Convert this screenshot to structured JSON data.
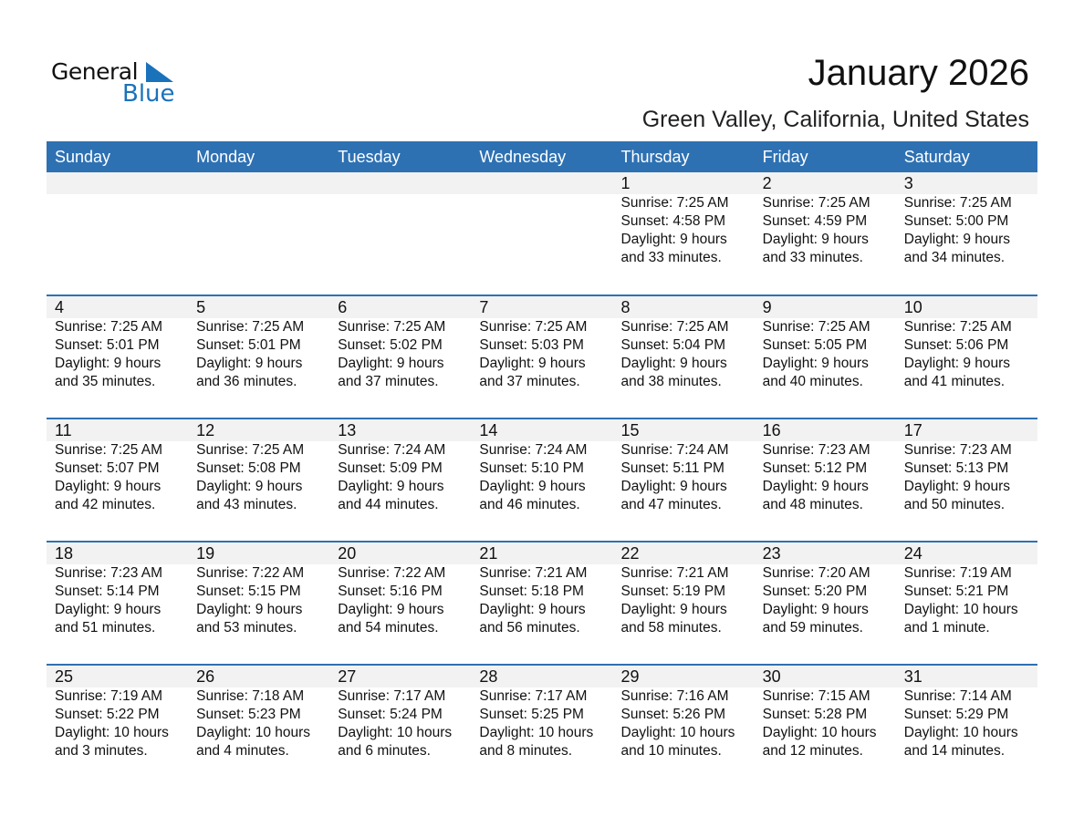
{
  "logo": {
    "text1": "General",
    "text2": "Blue",
    "color": "#1a72bb"
  },
  "title": "January 2026",
  "subtitle": "Green Valley, California, United States",
  "colors": {
    "header": "#2e71b3",
    "band": "#f2f2f2"
  },
  "days": [
    "Sunday",
    "Monday",
    "Tuesday",
    "Wednesday",
    "Thursday",
    "Friday",
    "Saturday"
  ],
  "weeks": [
    [
      null,
      null,
      null,
      null,
      {
        "day": "1",
        "sunrise": "Sunrise: 7:25 AM",
        "sunset": "Sunset: 4:58 PM",
        "daylight1": "Daylight: 9 hours",
        "daylight2": "and 33 minutes."
      },
      {
        "day": "2",
        "sunrise": "Sunrise: 7:25 AM",
        "sunset": "Sunset: 4:59 PM",
        "daylight1": "Daylight: 9 hours",
        "daylight2": "and 33 minutes."
      },
      {
        "day": "3",
        "sunrise": "Sunrise: 7:25 AM",
        "sunset": "Sunset: 5:00 PM",
        "daylight1": "Daylight: 9 hours",
        "daylight2": "and 34 minutes."
      }
    ],
    [
      {
        "day": "4",
        "sunrise": "Sunrise: 7:25 AM",
        "sunset": "Sunset: 5:01 PM",
        "daylight1": "Daylight: 9 hours",
        "daylight2": "and 35 minutes."
      },
      {
        "day": "5",
        "sunrise": "Sunrise: 7:25 AM",
        "sunset": "Sunset: 5:01 PM",
        "daylight1": "Daylight: 9 hours",
        "daylight2": "and 36 minutes."
      },
      {
        "day": "6",
        "sunrise": "Sunrise: 7:25 AM",
        "sunset": "Sunset: 5:02 PM",
        "daylight1": "Daylight: 9 hours",
        "daylight2": "and 37 minutes."
      },
      {
        "day": "7",
        "sunrise": "Sunrise: 7:25 AM",
        "sunset": "Sunset: 5:03 PM",
        "daylight1": "Daylight: 9 hours",
        "daylight2": "and 37 minutes."
      },
      {
        "day": "8",
        "sunrise": "Sunrise: 7:25 AM",
        "sunset": "Sunset: 5:04 PM",
        "daylight1": "Daylight: 9 hours",
        "daylight2": "and 38 minutes."
      },
      {
        "day": "9",
        "sunrise": "Sunrise: 7:25 AM",
        "sunset": "Sunset: 5:05 PM",
        "daylight1": "Daylight: 9 hours",
        "daylight2": "and 40 minutes."
      },
      {
        "day": "10",
        "sunrise": "Sunrise: 7:25 AM",
        "sunset": "Sunset: 5:06 PM",
        "daylight1": "Daylight: 9 hours",
        "daylight2": "and 41 minutes."
      }
    ],
    [
      {
        "day": "11",
        "sunrise": "Sunrise: 7:25 AM",
        "sunset": "Sunset: 5:07 PM",
        "daylight1": "Daylight: 9 hours",
        "daylight2": "and 42 minutes."
      },
      {
        "day": "12",
        "sunrise": "Sunrise: 7:25 AM",
        "sunset": "Sunset: 5:08 PM",
        "daylight1": "Daylight: 9 hours",
        "daylight2": "and 43 minutes."
      },
      {
        "day": "13",
        "sunrise": "Sunrise: 7:24 AM",
        "sunset": "Sunset: 5:09 PM",
        "daylight1": "Daylight: 9 hours",
        "daylight2": "and 44 minutes."
      },
      {
        "day": "14",
        "sunrise": "Sunrise: 7:24 AM",
        "sunset": "Sunset: 5:10 PM",
        "daylight1": "Daylight: 9 hours",
        "daylight2": "and 46 minutes."
      },
      {
        "day": "15",
        "sunrise": "Sunrise: 7:24 AM",
        "sunset": "Sunset: 5:11 PM",
        "daylight1": "Daylight: 9 hours",
        "daylight2": "and 47 minutes."
      },
      {
        "day": "16",
        "sunrise": "Sunrise: 7:23 AM",
        "sunset": "Sunset: 5:12 PM",
        "daylight1": "Daylight: 9 hours",
        "daylight2": "and 48 minutes."
      },
      {
        "day": "17",
        "sunrise": "Sunrise: 7:23 AM",
        "sunset": "Sunset: 5:13 PM",
        "daylight1": "Daylight: 9 hours",
        "daylight2": "and 50 minutes."
      }
    ],
    [
      {
        "day": "18",
        "sunrise": "Sunrise: 7:23 AM",
        "sunset": "Sunset: 5:14 PM",
        "daylight1": "Daylight: 9 hours",
        "daylight2": "and 51 minutes."
      },
      {
        "day": "19",
        "sunrise": "Sunrise: 7:22 AM",
        "sunset": "Sunset: 5:15 PM",
        "daylight1": "Daylight: 9 hours",
        "daylight2": "and 53 minutes."
      },
      {
        "day": "20",
        "sunrise": "Sunrise: 7:22 AM",
        "sunset": "Sunset: 5:16 PM",
        "daylight1": "Daylight: 9 hours",
        "daylight2": "and 54 minutes."
      },
      {
        "day": "21",
        "sunrise": "Sunrise: 7:21 AM",
        "sunset": "Sunset: 5:18 PM",
        "daylight1": "Daylight: 9 hours",
        "daylight2": "and 56 minutes."
      },
      {
        "day": "22",
        "sunrise": "Sunrise: 7:21 AM",
        "sunset": "Sunset: 5:19 PM",
        "daylight1": "Daylight: 9 hours",
        "daylight2": "and 58 minutes."
      },
      {
        "day": "23",
        "sunrise": "Sunrise: 7:20 AM",
        "sunset": "Sunset: 5:20 PM",
        "daylight1": "Daylight: 9 hours",
        "daylight2": "and 59 minutes."
      },
      {
        "day": "24",
        "sunrise": "Sunrise: 7:19 AM",
        "sunset": "Sunset: 5:21 PM",
        "daylight1": "Daylight: 10 hours",
        "daylight2": "and 1 minute."
      }
    ],
    [
      {
        "day": "25",
        "sunrise": "Sunrise: 7:19 AM",
        "sunset": "Sunset: 5:22 PM",
        "daylight1": "Daylight: 10 hours",
        "daylight2": "and 3 minutes."
      },
      {
        "day": "26",
        "sunrise": "Sunrise: 7:18 AM",
        "sunset": "Sunset: 5:23 PM",
        "daylight1": "Daylight: 10 hours",
        "daylight2": "and 4 minutes."
      },
      {
        "day": "27",
        "sunrise": "Sunrise: 7:17 AM",
        "sunset": "Sunset: 5:24 PM",
        "daylight1": "Daylight: 10 hours",
        "daylight2": "and 6 minutes."
      },
      {
        "day": "28",
        "sunrise": "Sunrise: 7:17 AM",
        "sunset": "Sunset: 5:25 PM",
        "daylight1": "Daylight: 10 hours",
        "daylight2": "and 8 minutes."
      },
      {
        "day": "29",
        "sunrise": "Sunrise: 7:16 AM",
        "sunset": "Sunset: 5:26 PM",
        "daylight1": "Daylight: 10 hours",
        "daylight2": "and 10 minutes."
      },
      {
        "day": "30",
        "sunrise": "Sunrise: 7:15 AM",
        "sunset": "Sunset: 5:28 PM",
        "daylight1": "Daylight: 10 hours",
        "daylight2": "and 12 minutes."
      },
      {
        "day": "31",
        "sunrise": "Sunrise: 7:14 AM",
        "sunset": "Sunset: 5:29 PM",
        "daylight1": "Daylight: 10 hours",
        "daylight2": "and 14 minutes."
      }
    ]
  ]
}
